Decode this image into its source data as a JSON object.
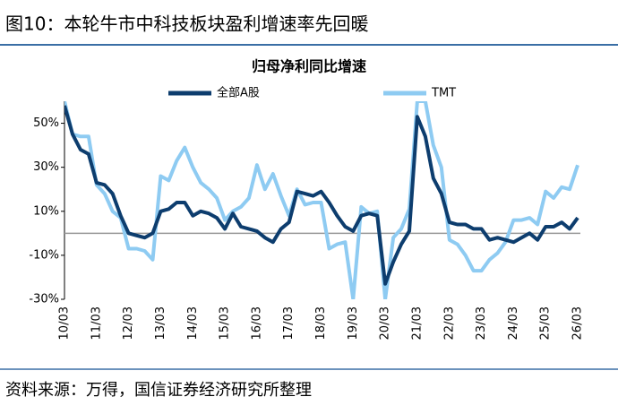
{
  "header": {
    "title": "图10：本轮牛市中科技板块盈利增速率先回暖"
  },
  "chart_data": {
    "type": "line",
    "title": "归母净利同比增速",
    "categories": [
      "10/03",
      null,
      null,
      null,
      "11/03",
      null,
      null,
      null,
      "12/03",
      null,
      null,
      null,
      "13/03",
      null,
      null,
      null,
      "14/03",
      null,
      null,
      null,
      "15/03",
      null,
      null,
      null,
      "16/03",
      null,
      null,
      null,
      "17/03",
      null,
      null,
      null,
      "18/03",
      null,
      null,
      null,
      "19/03",
      null,
      null,
      null,
      "20/03",
      null,
      null,
      null,
      "21/03",
      null,
      null,
      null,
      "22/03",
      null,
      null,
      null,
      "23/03",
      null,
      null,
      null,
      "24/03",
      null,
      null,
      null,
      "25/03",
      null,
      null,
      null,
      "26/03"
    ],
    "series": [
      {
        "name": "全部A股",
        "color": "#0d3d6e",
        "values": [
          58,
          45,
          38,
          36,
          23,
          22,
          18,
          8,
          0,
          -1,
          -2,
          0,
          10,
          11,
          14,
          14,
          8,
          10,
          9,
          7,
          2,
          9,
          3,
          2,
          1,
          -2,
          -4,
          2,
          5,
          19,
          18,
          17,
          19,
          14,
          8,
          3,
          1,
          8,
          9,
          8,
          -23,
          -13,
          -5,
          1,
          53,
          44,
          25,
          18,
          5,
          4,
          4,
          2,
          2,
          -3,
          -2,
          -3,
          -4,
          -2,
          0,
          -3,
          3,
          3,
          5,
          2,
          7
        ]
      },
      {
        "name": "TMT",
        "color": "#8ecbf2",
        "values": [
          60,
          45,
          44,
          44,
          22,
          18,
          10,
          7,
          -7,
          -7,
          -8,
          -12,
          26,
          24,
          33,
          39,
          30,
          23,
          20,
          16,
          6,
          10,
          12,
          16,
          31,
          20,
          27,
          17,
          8,
          20,
          13,
          14,
          14,
          -7,
          -5,
          -4,
          -30,
          12,
          9,
          10,
          -30,
          -2,
          2,
          11,
          60,
          60,
          40,
          30,
          -3,
          -5,
          -10,
          -17,
          -17,
          -12,
          -9,
          -4,
          6,
          6,
          7,
          4,
          19,
          16,
          21,
          20,
          31
        ]
      }
    ],
    "ylim": [
      -30,
      60
    ],
    "yticks": [
      {
        "value": -30,
        "label": "-30%"
      },
      {
        "value": -10,
        "label": "-10%"
      },
      {
        "value": 10,
        "label": "10%"
      },
      {
        "value": 30,
        "label": "30%"
      },
      {
        "value": 50,
        "label": "50%"
      }
    ],
    "grid": false,
    "legend": "top"
  },
  "footer": {
    "source": "资料来源：万得，国信证券经济研究所整理"
  }
}
